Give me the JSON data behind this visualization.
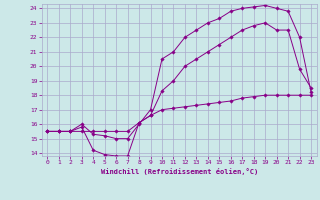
{
  "xlabel": "Windchill (Refroidissement éolien,°C)",
  "bg_color": "#cce8e8",
  "line_color": "#880088",
  "grid_color": "#aaaacc",
  "xlim": [
    -0.5,
    23.5
  ],
  "ylim": [
    13.8,
    24.3
  ],
  "yticks": [
    14,
    15,
    16,
    17,
    18,
    19,
    20,
    21,
    22,
    23,
    24
  ],
  "xticks": [
    0,
    1,
    2,
    3,
    4,
    5,
    6,
    7,
    8,
    9,
    10,
    11,
    12,
    13,
    14,
    15,
    16,
    17,
    18,
    19,
    20,
    21,
    22,
    23
  ],
  "line1_x": [
    0,
    1,
    2,
    3,
    4,
    5,
    6,
    7,
    8,
    9,
    10,
    11,
    12,
    13,
    14,
    15,
    16,
    17,
    18,
    19,
    20,
    21,
    22,
    23
  ],
  "line1_y": [
    15.5,
    15.5,
    15.5,
    15.5,
    15.5,
    15.5,
    15.5,
    15.5,
    16.1,
    16.6,
    17.0,
    17.1,
    17.2,
    17.3,
    17.4,
    17.5,
    17.6,
    17.8,
    17.9,
    18.0,
    18.0,
    18.0,
    18.0,
    18.0
  ],
  "line2_x": [
    0,
    1,
    2,
    3,
    4,
    5,
    6,
    7,
    8,
    9,
    10,
    11,
    12,
    13,
    14,
    15,
    16,
    17,
    18,
    19,
    20,
    21,
    22,
    23
  ],
  "line2_y": [
    15.5,
    15.5,
    15.5,
    15.8,
    14.2,
    13.9,
    13.8,
    13.8,
    16.1,
    16.6,
    18.3,
    19.0,
    20.0,
    20.5,
    21.0,
    21.5,
    22.0,
    22.5,
    22.8,
    23.0,
    22.5,
    22.5,
    19.8,
    18.5
  ],
  "line3_x": [
    0,
    1,
    2,
    3,
    4,
    5,
    6,
    7,
    8,
    9,
    10,
    11,
    12,
    13,
    14,
    15,
    16,
    17,
    18,
    19,
    20,
    21,
    22,
    23
  ],
  "line3_y": [
    15.5,
    15.5,
    15.5,
    16.0,
    15.3,
    15.2,
    15.0,
    15.0,
    16.0,
    17.0,
    20.5,
    21.0,
    22.0,
    22.5,
    23.0,
    23.3,
    23.8,
    24.0,
    24.1,
    24.2,
    24.0,
    23.8,
    22.0,
    18.2
  ]
}
